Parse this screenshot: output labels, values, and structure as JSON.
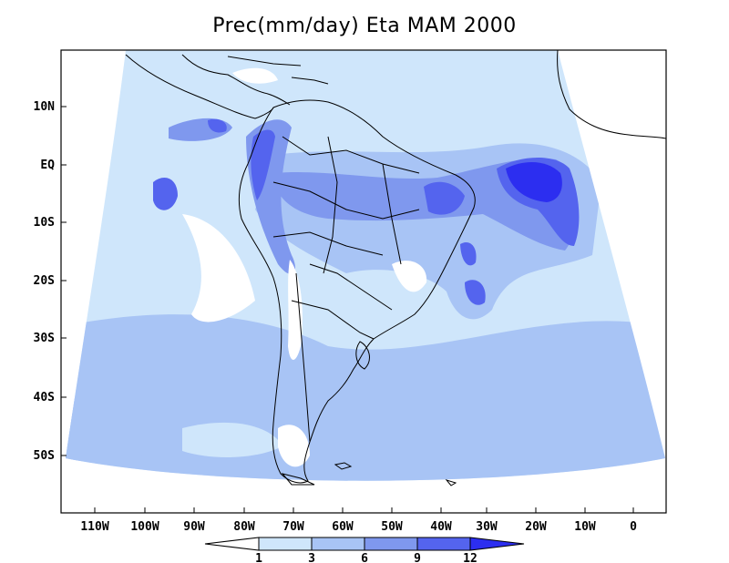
{
  "title": "Prec(mm/day) Eta MAM 2000",
  "y_axis": {
    "labels": [
      "10N",
      "EQ",
      "10S",
      "20S",
      "30S",
      "40S",
      "50S"
    ]
  },
  "x_axis": {
    "labels": [
      "110W",
      "100W",
      "90W",
      "80W",
      "70W",
      "60W",
      "50W",
      "40W",
      "30W",
      "20W",
      "10W",
      "0"
    ]
  },
  "colorbar": {
    "levels": [
      "1",
      "3",
      "6",
      "9",
      "12"
    ],
    "colors": [
      "#ffffff",
      "#cfe6fb",
      "#a8c4f5",
      "#7f98ee",
      "#5464ee",
      "#2c2ef0"
    ]
  },
  "colors": {
    "land_outline": "#000000",
    "frame": "#000000",
    "light": "#cfe6fb",
    "medium": "#a8c4f5",
    "heavy": "#7f98ee",
    "intense": "#5464ee",
    "extreme": "#2c2ef0"
  }
}
